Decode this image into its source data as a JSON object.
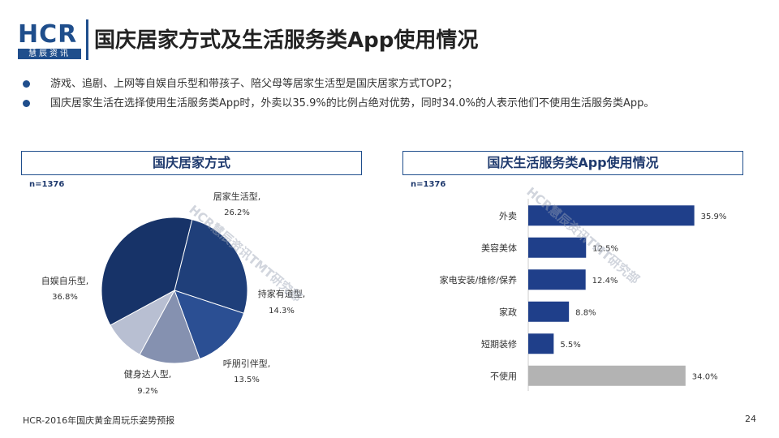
{
  "logo": {
    "top_text": "HCR",
    "bottom_text": "慧辰资讯"
  },
  "title": "国庆居家方式及生活服务类App使用情况",
  "bullets": [
    "游戏、追剧、上网等自娱自乐型和带孩子、陪父母等居家生活型是国庆居家方式TOP2；",
    "国庆居家生活在选择使用生活服务类App时，外卖以35.9%的比例占绝对优势，同时34.0%的人表示他们不使用生活服务类App。"
  ],
  "left_panel": {
    "header": "国庆居家方式",
    "n_label": "n=1376"
  },
  "right_panel": {
    "header": "国庆生活服务类App使用情况",
    "n_label": "n=1376"
  },
  "watermark": "HCR慧辰资讯TMT研究部",
  "footer": "HCR-2016年国庆黄金周玩乐姿势预报",
  "page_number": "24",
  "chart_data": [
    {
      "type": "pie",
      "title": "国庆居家方式",
      "slices": [
        {
          "label": "居家生活型,",
          "value": 26.2,
          "value_label": "26.2%",
          "color": "#1f3f7a"
        },
        {
          "label": "持家有道型,",
          "value": 14.3,
          "value_label": "14.3%",
          "color": "#2b4f93"
        },
        {
          "label": "呼朋引伴型,",
          "value": 13.5,
          "value_label": "13.5%",
          "color": "#8591b0"
        },
        {
          "label": "健身达人型,",
          "value": 9.2,
          "value_label": "9.2%",
          "color": "#b8bfd2"
        },
        {
          "label": "自娱自乐型,",
          "value": 36.8,
          "value_label": "36.8%",
          "color": "#173368"
        }
      ]
    },
    {
      "type": "bar",
      "orientation": "horizontal",
      "title": "国庆生活服务类App使用情况",
      "categories": [
        "外卖",
        "美容美体",
        "家电安装/维修/保养",
        "家政",
        "短期装修",
        "不使用"
      ],
      "values": [
        35.9,
        12.5,
        12.4,
        8.8,
        5.5,
        34.0
      ],
      "value_labels": [
        "35.9%",
        "12.5%",
        "12.4%",
        "8.8%",
        "5.5%",
        "34.0%"
      ],
      "colors": [
        "#1f3f8a",
        "#1f3f8a",
        "#1f3f8a",
        "#1f3f8a",
        "#1f3f8a",
        "#b3b3b3"
      ],
      "xlim": [
        0,
        40
      ]
    }
  ]
}
